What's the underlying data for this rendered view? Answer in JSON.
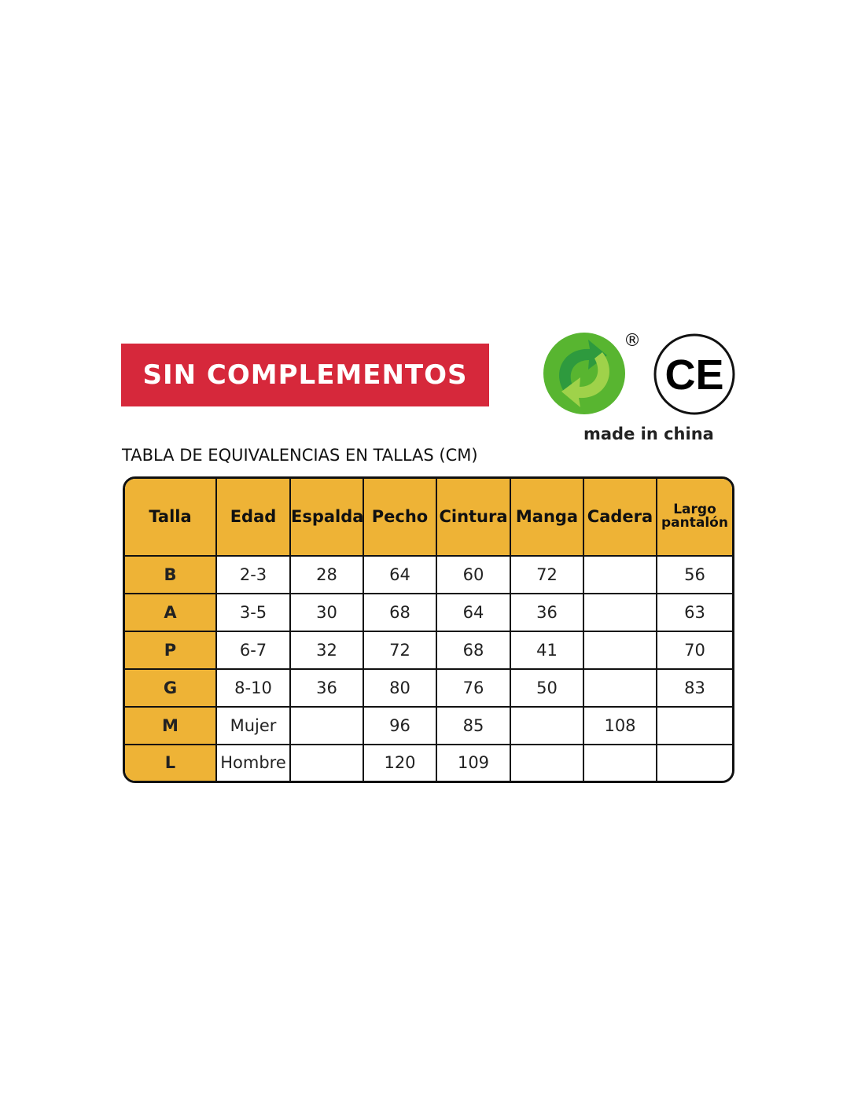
{
  "banner": "SIN COMPLEMENTOS",
  "registered_mark": "®",
  "ce_mark": "CE",
  "made_in": "made in china",
  "table_title": "TABLA DE EQUIVALENCIAS EN TALLAS (CM)",
  "colors": {
    "banner": "#d6283b",
    "header": "#eeb336",
    "green_dot": "#4caf2d"
  },
  "headers": [
    "Talla",
    "Edad",
    "Espalda",
    "Pecho",
    "Cintura",
    "Manga",
    "Cadera",
    "Largo pantalón"
  ],
  "rows": [
    [
      "B",
      "2-3",
      "28",
      "64",
      "60",
      "72",
      "",
      "56"
    ],
    [
      "A",
      "3-5",
      "30",
      "68",
      "64",
      "36",
      "",
      "63"
    ],
    [
      "P",
      "6-7",
      "32",
      "72",
      "68",
      "41",
      "",
      "70"
    ],
    [
      "G",
      "8-10",
      "36",
      "80",
      "76",
      "50",
      "",
      "83"
    ],
    [
      "M",
      "Mujer",
      "",
      "96",
      "85",
      "",
      "108",
      ""
    ],
    [
      "L",
      "Hombre",
      "",
      "120",
      "109",
      "",
      "",
      ""
    ]
  ]
}
